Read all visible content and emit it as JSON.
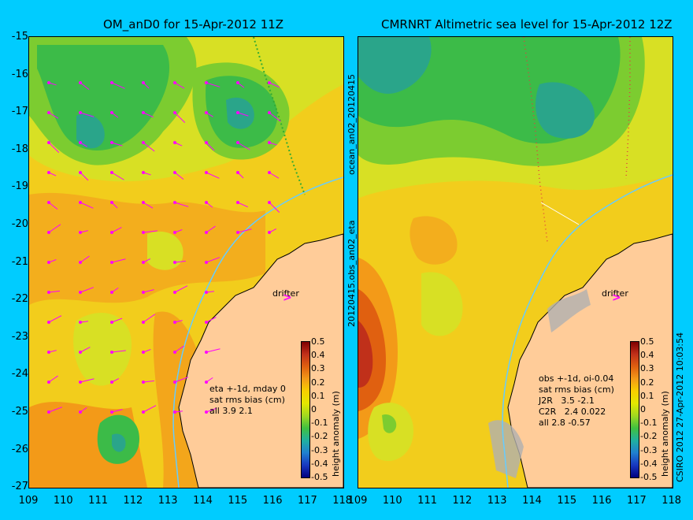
{
  "left_title": "OM_anD0 for 15-Apr-2012 11Z",
  "right_title": "CMRNRT Altimetric sea level  for 15-Apr-2012 12Z",
  "y_ticks": [
    "-15",
    "-16",
    "-17",
    "-18",
    "-19",
    "-20",
    "-21",
    "-22",
    "-23",
    "-24",
    "-25",
    "-26",
    "-27"
  ],
  "x_ticks": [
    "109",
    "110",
    "111",
    "112",
    "113",
    "114",
    "115",
    "116",
    "117",
    "118"
  ],
  "side_label_top": "ocean_an02_20120415",
  "side_label_bottom": "20120415.obs_an02_eta",
  "copyright": "CSIRO 2012  27-Apr-2012 10:03:54",
  "drifter_label": "drifter",
  "drifter_mark": ">",
  "left_stats": [
    "eta +-1d, mday 0",
    "sat rms bias (cm)",
    "all 3.9 2.1"
  ],
  "right_stats": [
    "obs +-1d, oi-0.04",
    "sat rms bias (cm)",
    "J2R   3.5 -2.1",
    "C2R   2.4 0.022",
    "all 2.8 -0.57"
  ],
  "colorbar_ticks": [
    "0.5",
    "0.4",
    "0.3",
    "0.2",
    "0.1",
    "0",
    "-0.1",
    "-0.2",
    "-0.3",
    "-0.4",
    "-0.5"
  ],
  "colorbar_label": "height anomaly (m)",
  "colors": {
    "background": "#00ccff",
    "land": "#ffcc99",
    "base_field": "#f2d21a",
    "arrow": "#ff00ff",
    "track": "#66ccff"
  }
}
